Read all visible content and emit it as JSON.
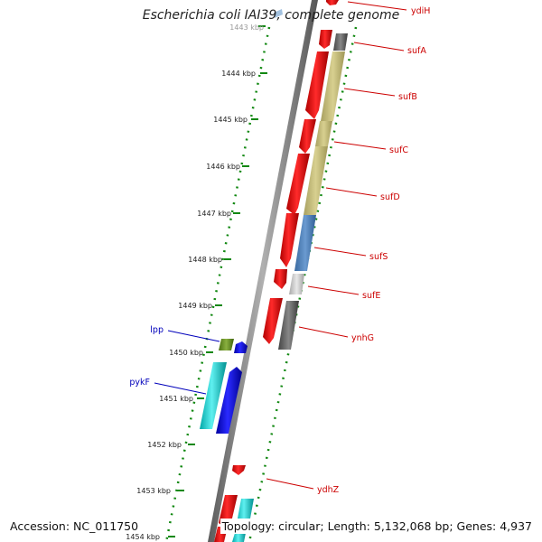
{
  "title": "Escherichia coli IAI39, complete genome",
  "footer": {
    "accession": "Accession: NC_011750",
    "summary": "Topology: circular; Length: 5,132,068 bp; Genes: 4,937"
  },
  "colors": {
    "forward_label": "#cc0000",
    "reverse_label": "#0000bb",
    "tick": "#118811",
    "backbone": "#808080"
  },
  "ticks": [
    "1443 kbp",
    "1444 kbp",
    "1445 kbp",
    "1446 kbp",
    "1447 kbp",
    "1448 kbp",
    "1449 kbp",
    "1450 kbp",
    "1451 kbp",
    "1452 kbp",
    "1453 kbp",
    "1454 kbp"
  ],
  "genes": [
    {
      "name": "ydiH",
      "strand": "forward"
    },
    {
      "name": "sufA",
      "strand": "forward"
    },
    {
      "name": "sufB",
      "strand": "forward"
    },
    {
      "name": "sufC",
      "strand": "forward"
    },
    {
      "name": "sufD",
      "strand": "forward"
    },
    {
      "name": "sufS",
      "strand": "forward"
    },
    {
      "name": "sufE",
      "strand": "forward"
    },
    {
      "name": "ynhG",
      "strand": "forward"
    },
    {
      "name": "ydhZ",
      "strand": "forward"
    },
    {
      "name": "lpp",
      "strand": "reverse"
    },
    {
      "name": "pykF",
      "strand": "reverse"
    }
  ]
}
